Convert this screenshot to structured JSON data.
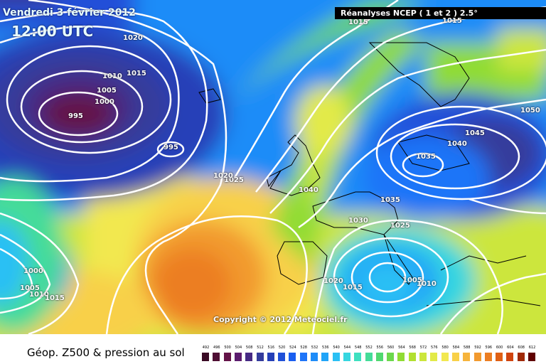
{
  "header": {
    "date": "Vendredi 3 février 2012",
    "time": "12:00 UTC"
  },
  "source_label": "Réanalyses NCEP ( 1 et 2 ) 2.5°",
  "copyright": "Copyright © 2012 Meteociel.fr",
  "legend": {
    "title": "Géop. Z500 & pression au sol",
    "scale_values": [
      "492",
      "496",
      "500",
      "504",
      "508",
      "512",
      "516",
      "520",
      "524",
      "528",
      "532",
      "536",
      "540",
      "544",
      "548",
      "552",
      "556",
      "560",
      "564",
      "568",
      "572",
      "576",
      "580",
      "584",
      "588",
      "592",
      "596",
      "600",
      "604",
      "608",
      "612"
    ],
    "scale_colors": [
      "#3a0a24",
      "#4f0f34",
      "#641448",
      "#5c1c6e",
      "#472a84",
      "#343c9c",
      "#2540b8",
      "#2050d8",
      "#1a5ef0",
      "#1e74f8",
      "#1e8cf8",
      "#20a4f8",
      "#2ac0f4",
      "#36d6e0",
      "#3ee0c0",
      "#44dc98",
      "#50d870",
      "#6cd84c",
      "#90dc34",
      "#b2e030",
      "#cce63c",
      "#e2ea48",
      "#f2e850",
      "#f8d048",
      "#f6b43c",
      "#f29a2e",
      "#ec7e22",
      "#e06014",
      "#d0440e",
      "#a02a08",
      "#600000"
    ]
  },
  "highs": [
    {
      "label": "1015"
    },
    {
      "label": "1015"
    },
    {
      "label": "1050"
    },
    {
      "label": "1045"
    },
    {
      "label": "1040"
    },
    {
      "label": "1035"
    },
    {
      "label": "1040"
    },
    {
      "label": "1035"
    },
    {
      "label": "1030"
    },
    {
      "label": "1025"
    },
    {
      "label": "1025"
    },
    {
      "label": "1020"
    },
    {
      "label": "1020"
    }
  ],
  "isobar_labels": [
    {
      "label": "1020"
    },
    {
      "label": "1015"
    },
    {
      "label": "1010"
    },
    {
      "label": "1005"
    },
    {
      "label": "1000"
    },
    {
      "label": "995"
    },
    {
      "label": "995"
    },
    {
      "label": "1000"
    },
    {
      "label": "1005"
    },
    {
      "label": "1010"
    },
    {
      "label": "1015"
    },
    {
      "label": "1020"
    },
    {
      "label": "1015"
    },
    {
      "label": "1005"
    },
    {
      "label": "1010"
    }
  ]
}
